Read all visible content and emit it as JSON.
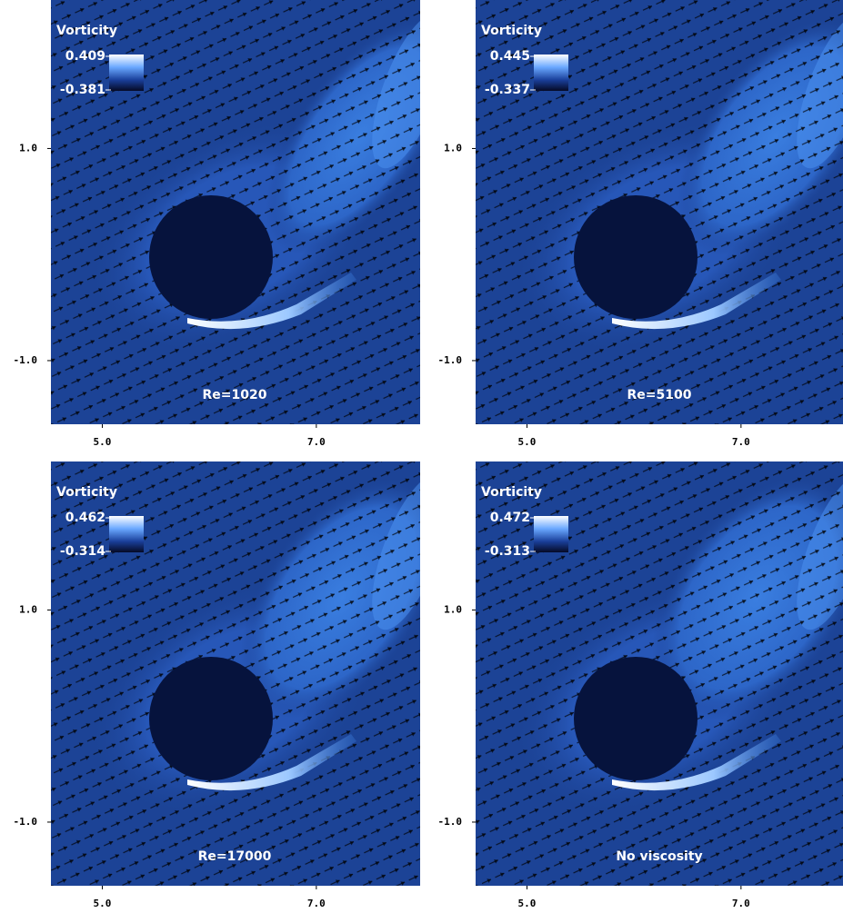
{
  "chart_data": [
    {
      "type": "field",
      "colorbar_label": "Vorticity",
      "colorbar_range": [
        -0.381,
        0.409
      ],
      "annotation": "Re=1020",
      "xlim": [
        4.52,
        7.97
      ],
      "ylim": [
        -1.6,
        2.4
      ],
      "xticks": [
        {
          "value": 5,
          "label": "5.0"
        },
        {
          "value": 7,
          "label": "7.0"
        }
      ],
      "yticks": [
        {
          "value": 1,
          "label": "1.0"
        },
        {
          "value": -1,
          "label": "-1.0"
        }
      ]
    },
    {
      "type": "field",
      "colorbar_label": "Vorticity",
      "colorbar_range": [
        -0.337,
        0.445
      ],
      "annotation": "Re=5100",
      "xlim": [
        4.52,
        7.97
      ],
      "ylim": [
        -1.6,
        2.4
      ],
      "xticks": [
        {
          "value": 5,
          "label": "5.0"
        },
        {
          "value": 7,
          "label": "7.0"
        }
      ],
      "yticks": [
        {
          "value": 1,
          "label": "1.0"
        },
        {
          "value": -1,
          "label": "-1.0"
        }
      ]
    },
    {
      "type": "field",
      "colorbar_label": "Vorticity",
      "colorbar_range": [
        -0.314,
        0.462
      ],
      "annotation": "Re=17000",
      "xlim": [
        4.52,
        7.97
      ],
      "ylim": [
        -1.6,
        2.4
      ],
      "xticks": [
        {
          "value": 5,
          "label": "5.0"
        },
        {
          "value": 7,
          "label": "7.0"
        }
      ],
      "yticks": [
        {
          "value": 1,
          "label": "1.0"
        },
        {
          "value": -1,
          "label": "-1.0"
        }
      ]
    },
    {
      "type": "field",
      "colorbar_label": "Vorticity",
      "colorbar_range": [
        -0.313,
        0.472
      ],
      "annotation": "No viscosity",
      "xlim": [
        4.52,
        7.97
      ],
      "ylim": [
        -1.6,
        2.4
      ],
      "xticks": [
        {
          "value": 5,
          "label": "5.0"
        },
        {
          "value": 7,
          "label": "7.0"
        }
      ],
      "yticks": [
        {
          "value": 1,
          "label": "1.0"
        },
        {
          "value": -1,
          "label": "-1.0"
        }
      ]
    }
  ]
}
